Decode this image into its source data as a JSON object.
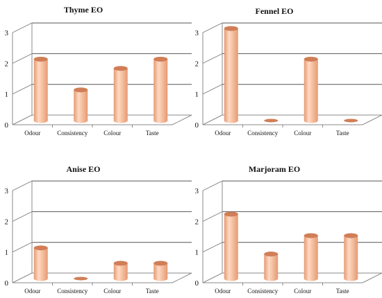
{
  "colors": {
    "bar_side": "#e59a72",
    "bar_highlight": "#ffd9c2",
    "bar_top": "#d07e57",
    "grid": "#555555",
    "frame": "#888888"
  },
  "chart_data": [
    {
      "type": "bar",
      "title": "Thyme EO",
      "categories": [
        "Odour",
        "Consistency",
        "Colour",
        "Taste"
      ],
      "values": [
        2,
        1,
        1.7,
        2
      ],
      "ylim": [
        0,
        3
      ],
      "yticks": [
        "0",
        "1",
        "2",
        "3"
      ],
      "grid": true
    },
    {
      "type": "bar",
      "title": "Fennel EO",
      "categories": [
        "Odour",
        "Consistency",
        "Colour",
        "Taste"
      ],
      "values": [
        3,
        0,
        2,
        0
      ],
      "ylim": [
        0,
        3
      ],
      "yticks": [
        "0",
        "1",
        "2",
        "3"
      ],
      "grid": true
    },
    {
      "type": "bar",
      "title": "Anise EO",
      "categories": [
        "Odour",
        "Consistency",
        "Colour",
        "Taste"
      ],
      "values": [
        1,
        0,
        0.5,
        0.5
      ],
      "ylim": [
        0,
        3
      ],
      "yticks": [
        "0",
        "1",
        "2",
        "3"
      ],
      "grid": true
    },
    {
      "type": "bar",
      "title": "Marjoram EO",
      "categories": [
        "Odour",
        "Consistency",
        "Colour",
        "Taste"
      ],
      "values": [
        2.1,
        0.8,
        1.4,
        1.4
      ],
      "ylim": [
        0,
        3
      ],
      "yticks": [
        "0",
        "1",
        "2",
        "3"
      ],
      "grid": true
    }
  ]
}
